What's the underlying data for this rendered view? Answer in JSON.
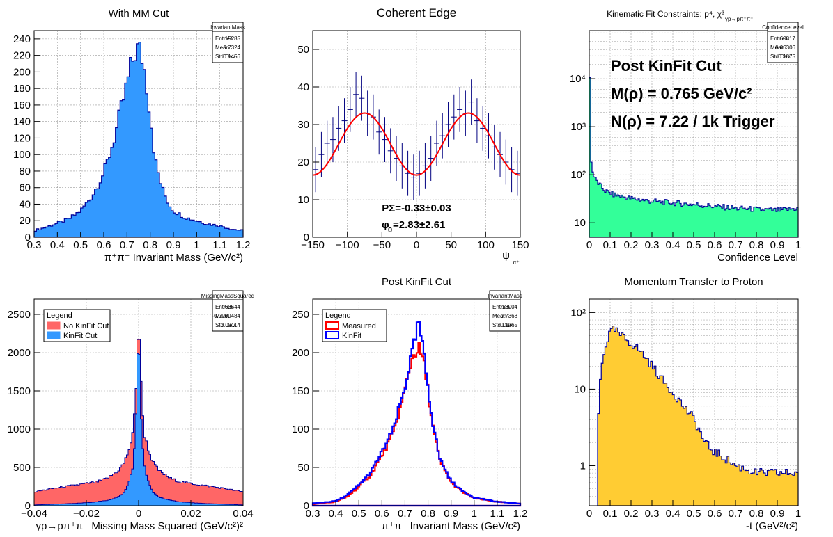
{
  "chart_data": [
    {
      "type": "histogram",
      "title": "With MM Cut",
      "xlabel": "π⁺π⁻ Invariant Mass (GeV/c²)",
      "ylabel": "",
      "xlim": [
        0.3,
        1.2
      ],
      "ylim": [
        0,
        250
      ],
      "xticks": [
        "0.3",
        "0.4",
        "0.5",
        "0.6",
        "0.7",
        "0.8",
        "0.9",
        "1",
        "1.1",
        "1.2"
      ],
      "yticks": [
        "0",
        "20",
        "40",
        "60",
        "80",
        "100",
        "120",
        "140",
        "160",
        "180",
        "200",
        "220",
        "240"
      ],
      "fill_color": "#3399ff",
      "line_color": "#000099",
      "stats": {
        "name": "InvariantMass",
        "entries": "15285",
        "mean": "0.7324",
        "stddev": "0.1456"
      },
      "series": [
        {
          "x": [
            0.3,
            0.35,
            0.4,
            0.45,
            0.5,
            0.55,
            0.6,
            0.625,
            0.65,
            0.675,
            0.7,
            0.72,
            0.74,
            0.76,
            0.78,
            0.8,
            0.82,
            0.85,
            0.88,
            0.9,
            0.95,
            1.0,
            1.05,
            1.1,
            1.15,
            1.2
          ],
          "y": [
            8,
            12,
            17,
            22,
            32,
            50,
            78,
            100,
            125,
            155,
            185,
            210,
            228,
            225,
            195,
            150,
            95,
            60,
            40,
            32,
            24,
            20,
            16,
            14,
            10,
            8
          ]
        }
      ]
    },
    {
      "type": "scatter",
      "title": "Coherent Edge",
      "xlabel": "ψ",
      "xlabel_sub": "π⁺",
      "ylabel": "",
      "xlim": [
        -180,
        180
      ],
      "ylim": [
        0,
        55
      ],
      "xticks": [
        "−150",
        "−100",
        "−50",
        "0",
        "50",
        "100",
        "150"
      ],
      "yticks": [
        "0",
        "10",
        "20",
        "30",
        "40",
        "50"
      ],
      "point_color": "#000080",
      "fit_color": "#ff0000",
      "fit": {
        "offset": 24.8,
        "amplitude": 8.25
      },
      "labels": {
        "p_sigma": "PΣ=-0.33±0.03",
        "phi0_prefix": "φ",
        "phi0_sub": "0",
        "phi0_value": "=2.83±2.61"
      },
      "series": [
        {
          "x": [
            -175,
            -165,
            -155,
            -145,
            -135,
            -125,
            -115,
            -105,
            -95,
            -85,
            -75,
            -65,
            -55,
            -45,
            -35,
            -25,
            -15,
            -5,
            5,
            15,
            25,
            35,
            45,
            55,
            65,
            75,
            85,
            95,
            105,
            115,
            125,
            135,
            145,
            155,
            165,
            175
          ],
          "y": [
            18,
            22,
            25,
            26,
            29,
            31,
            34,
            38,
            37,
            33,
            32,
            28,
            26,
            23,
            21,
            19,
            17,
            16,
            17,
            19,
            21,
            25,
            27,
            30,
            32,
            34,
            33,
            36,
            31,
            29,
            27,
            24,
            22,
            20,
            18,
            17
          ]
        }
      ]
    },
    {
      "type": "histogram",
      "title": "Kinematic Fit Constraints: p⁴, χ³",
      "title_sub": "γp→pπ⁺π⁻",
      "xlabel": "Confidence Level",
      "ylabel": "",
      "xlim": [
        0,
        1
      ],
      "ylim": [
        5,
        100000
      ],
      "log_y": true,
      "xticks": [
        "0",
        "0.1",
        "0.2",
        "0.3",
        "0.4",
        "0.5",
        "0.6",
        "0.7",
        "0.8",
        "0.9",
        "1"
      ],
      "yticks": [
        "10",
        "10²",
        "10³",
        "10⁴"
      ],
      "fill_color": "#33ff99",
      "line_color": "#000099",
      "stats": {
        "name": "ConfidenceLevel",
        "entries": "60817",
        "mean": "0.06306",
        "stddev": "0.1875"
      },
      "annotations": [
        "Post KinFit Cut",
        "M(ρ) = 0.765 GeV/c²",
        "N(ρ) = 7.22 / 1k Trigger"
      ],
      "series": [
        {
          "x": [
            0,
            0.005,
            0.01,
            0.015,
            0.02,
            0.03,
            0.05,
            0.08,
            0.12,
            0.2,
            0.3,
            0.4,
            0.5,
            0.6,
            0.7,
            0.8,
            0.9,
            1.0
          ],
          "y": [
            30000,
            500,
            200,
            120,
            100,
            80,
            60,
            45,
            38,
            32,
            28,
            26,
            24,
            22,
            20,
            19,
            18,
            20
          ]
        }
      ]
    },
    {
      "type": "histogram",
      "title": "",
      "xlabel": "γp→pπ⁺π⁻ Missing Mass Squared (GeV/c²)²",
      "ylabel": "",
      "xlim": [
        -0.05,
        0.05
      ],
      "ylim": [
        0,
        2700
      ],
      "xticks": [
        "−0.04",
        "−0.02",
        "0",
        "0.02",
        "0.04"
      ],
      "yticks": [
        "0",
        "500",
        "1000",
        "1500",
        "2000",
        "2500"
      ],
      "stats": {
        "name": "MissingMassSquared",
        "entries": "63644",
        "mean": "-0.0009484",
        "stddev": "0.02114"
      },
      "legend": {
        "title": "Legend",
        "entries": [
          "No KinFit Cut",
          "KinFit Cut"
        ]
      },
      "series": [
        {
          "name": "No KinFit Cut",
          "color": "#ff6666",
          "x": [
            -0.05,
            -0.04,
            -0.03,
            -0.02,
            -0.015,
            -0.01,
            -0.007,
            -0.005,
            -0.003,
            -0.002,
            -0.001,
            0,
            0.001,
            0.002,
            0.003,
            0.005,
            0.007,
            0.01,
            0.015,
            0.02,
            0.03,
            0.04,
            0.05
          ],
          "y": [
            180,
            230,
            270,
            310,
            360,
            450,
            560,
            700,
            900,
            1200,
            1700,
            2550,
            1700,
            1200,
            900,
            700,
            560,
            450,
            360,
            310,
            270,
            230,
            180
          ]
        },
        {
          "name": "KinFit Cut",
          "color": "#3399ff",
          "x": [
            -0.05,
            -0.04,
            -0.03,
            -0.02,
            -0.015,
            -0.01,
            -0.007,
            -0.005,
            -0.003,
            -0.002,
            -0.001,
            0,
            0.001,
            0.002,
            0.003,
            0.005,
            0.007,
            0.01,
            0.015,
            0.02,
            0.03,
            0.04,
            0.05
          ],
          "y": [
            10,
            20,
            30,
            50,
            70,
            110,
            170,
            280,
            480,
            750,
            1300,
            2500,
            1300,
            750,
            480,
            280,
            170,
            110,
            70,
            50,
            30,
            20,
            10
          ]
        }
      ]
    },
    {
      "type": "histogram",
      "title": "Post KinFit Cut",
      "xlabel": "π⁺π⁻ Invariant Mass (GeV/c²)",
      "ylabel": "",
      "xlim": [
        0.3,
        1.2
      ],
      "ylim": [
        0,
        270
      ],
      "xticks": [
        "0.3",
        "0.4",
        "0.5",
        "0.6",
        "0.7",
        "0.8",
        "0.9",
        "1",
        "1.1",
        "1.2"
      ],
      "yticks": [
        "0",
        "50",
        "100",
        "150",
        "200",
        "250"
      ],
      "stats": {
        "name": "InvariantMass",
        "entries": "13004",
        "mean": "0.7368",
        "stddev": "0.1265"
      },
      "legend": {
        "title": "Legend",
        "entries": [
          "Measured",
          "KinFit"
        ]
      },
      "series": [
        {
          "name": "Measured",
          "color": "#ff0000",
          "x": [
            0.3,
            0.4,
            0.45,
            0.5,
            0.55,
            0.6,
            0.65,
            0.7,
            0.72,
            0.74,
            0.76,
            0.78,
            0.8,
            0.82,
            0.85,
            0.9,
            0.95,
            1.0,
            1.1,
            1.2
          ],
          "y": [
            2,
            5,
            12,
            25,
            40,
            65,
            95,
            150,
            180,
            200,
            205,
            190,
            150,
            105,
            60,
            30,
            18,
            10,
            5,
            3
          ]
        },
        {
          "name": "KinFit",
          "color": "#0000ff",
          "x": [
            0.3,
            0.4,
            0.45,
            0.5,
            0.55,
            0.6,
            0.65,
            0.7,
            0.72,
            0.74,
            0.76,
            0.78,
            0.8,
            0.82,
            0.85,
            0.9,
            0.95,
            1.0,
            1.1,
            1.2
          ],
          "y": [
            3,
            6,
            14,
            27,
            43,
            70,
            100,
            155,
            185,
            210,
            240,
            200,
            155,
            110,
            62,
            32,
            19,
            11,
            5,
            3
          ]
        }
      ]
    },
    {
      "type": "histogram",
      "title": "Momentum Transfer to Proton",
      "xlabel": "-t (GeV²/c²)",
      "ylabel": "",
      "xlim": [
        0,
        1
      ],
      "ylim": [
        0.3,
        150
      ],
      "log_y": true,
      "xticks": [
        "0",
        "0.1",
        "0.2",
        "0.3",
        "0.4",
        "0.5",
        "0.6",
        "0.7",
        "0.8",
        "0.9",
        "1"
      ],
      "yticks": [
        "1",
        "10",
        "10²"
      ],
      "fill_color": "#ffcc33",
      "line_color": "#000099",
      "series": [
        {
          "x": [
            0.04,
            0.05,
            0.07,
            0.1,
            0.12,
            0.15,
            0.2,
            0.25,
            0.3,
            0.35,
            0.4,
            0.45,
            0.5,
            0.55,
            0.6,
            0.7,
            0.8,
            0.9,
            1.0
          ],
          "y": [
            0.5,
            10,
            30,
            55,
            60,
            50,
            40,
            30,
            20,
            13,
            9,
            6,
            4,
            2,
            1.5,
            1,
            0.8,
            0.8,
            0.8
          ]
        }
      ]
    }
  ]
}
